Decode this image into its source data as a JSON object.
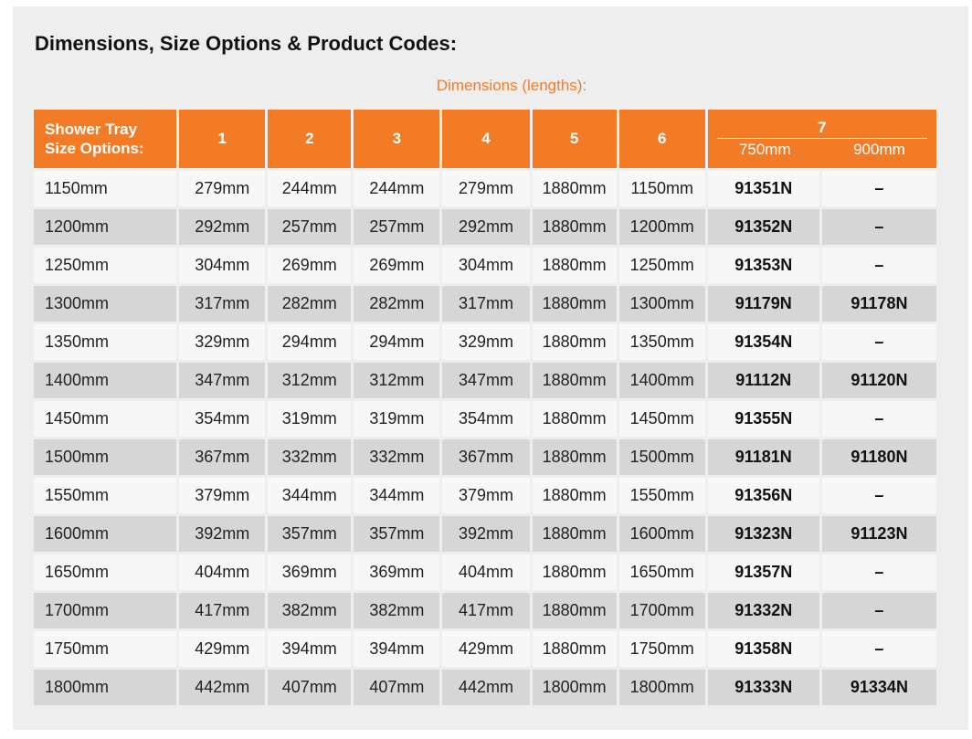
{
  "heading": "Dimensions, Size Options & Product Codes:",
  "subheading": "Dimensions (lengths):",
  "colors": {
    "accent": "#f47b26",
    "panel_bg": "#eeeeee",
    "row_light": "#f7f7f7",
    "row_dark": "#d6d6d6"
  },
  "table": {
    "header": {
      "first_line1": "Shower Tray",
      "first_line2": "Size Options:",
      "cols": [
        "1",
        "2",
        "3",
        "4",
        "5",
        "6"
      ],
      "col7": "7",
      "col7_sub": [
        "750mm",
        "900mm"
      ]
    },
    "rows": [
      [
        "1150mm",
        "279mm",
        "244mm",
        "244mm",
        "279mm",
        "1880mm",
        "1150mm",
        "91351N",
        "–"
      ],
      [
        "1200mm",
        "292mm",
        "257mm",
        "257mm",
        "292mm",
        "1880mm",
        "1200mm",
        "91352N",
        "–"
      ],
      [
        "1250mm",
        "304mm",
        "269mm",
        "269mm",
        "304mm",
        "1880mm",
        "1250mm",
        "91353N",
        "–"
      ],
      [
        "1300mm",
        "317mm",
        "282mm",
        "282mm",
        "317mm",
        "1880mm",
        "1300mm",
        "91179N",
        "91178N"
      ],
      [
        "1350mm",
        "329mm",
        "294mm",
        "294mm",
        "329mm",
        "1880mm",
        "1350mm",
        "91354N",
        "–"
      ],
      [
        "1400mm",
        "347mm",
        "312mm",
        "312mm",
        "347mm",
        "1880mm",
        "1400mm",
        "91112N",
        "91120N"
      ],
      [
        "1450mm",
        "354mm",
        "319mm",
        "319mm",
        "354mm",
        "1880mm",
        "1450mm",
        "91355N",
        "–"
      ],
      [
        "1500mm",
        "367mm",
        "332mm",
        "332mm",
        "367mm",
        "1880mm",
        "1500mm",
        "91181N",
        "91180N"
      ],
      [
        "1550mm",
        "379mm",
        "344mm",
        "344mm",
        "379mm",
        "1880mm",
        "1550mm",
        "91356N",
        "–"
      ],
      [
        "1600mm",
        "392mm",
        "357mm",
        "357mm",
        "392mm",
        "1880mm",
        "1600mm",
        "91323N",
        "91123N"
      ],
      [
        "1650mm",
        "404mm",
        "369mm",
        "369mm",
        "404mm",
        "1880mm",
        "1650mm",
        "91357N",
        "–"
      ],
      [
        "1700mm",
        "417mm",
        "382mm",
        "382mm",
        "417mm",
        "1880mm",
        "1700mm",
        "91332N",
        "–"
      ],
      [
        "1750mm",
        "429mm",
        "394mm",
        "394mm",
        "429mm",
        "1880mm",
        "1750mm",
        "91358N",
        "–"
      ],
      [
        "1800mm",
        "442mm",
        "407mm",
        "407mm",
        "442mm",
        "1800mm",
        "1800mm",
        "91333N",
        "91334N"
      ]
    ]
  }
}
